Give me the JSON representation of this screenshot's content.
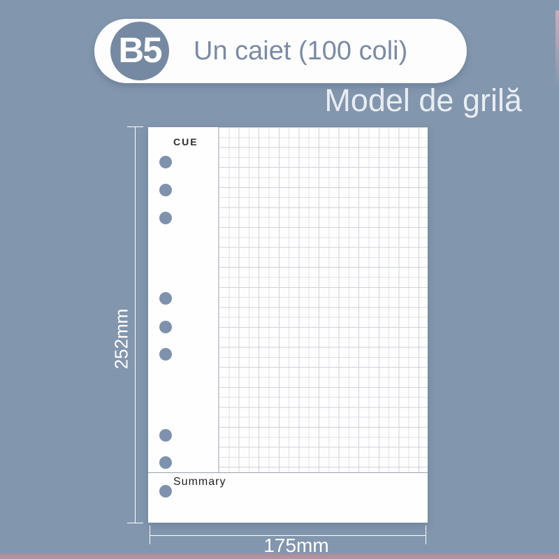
{
  "badge": {
    "size_label": "B5",
    "title": "Un caiet (100 coli)"
  },
  "subtitle": "Model de grilă",
  "paper": {
    "cue_label": "CUE",
    "summary_label": "Summary"
  },
  "dimensions": {
    "height_label": "252mm",
    "width_label": "175mm"
  },
  "colors": {
    "background": "#8296ad",
    "badge_pill": "#fdfdfe",
    "badge_circle": "#7589a2",
    "badge_title_text": "#7b8ba5",
    "subtitle_text": "#e9edf3",
    "paper": "#fefefe",
    "grid_line_light": "#e0e2e6",
    "grid_line_dark": "#ced2d8",
    "hole": "#7e92ae",
    "dimension_annotation": "#ffffff",
    "bottom_strip": "#a98b9b"
  }
}
